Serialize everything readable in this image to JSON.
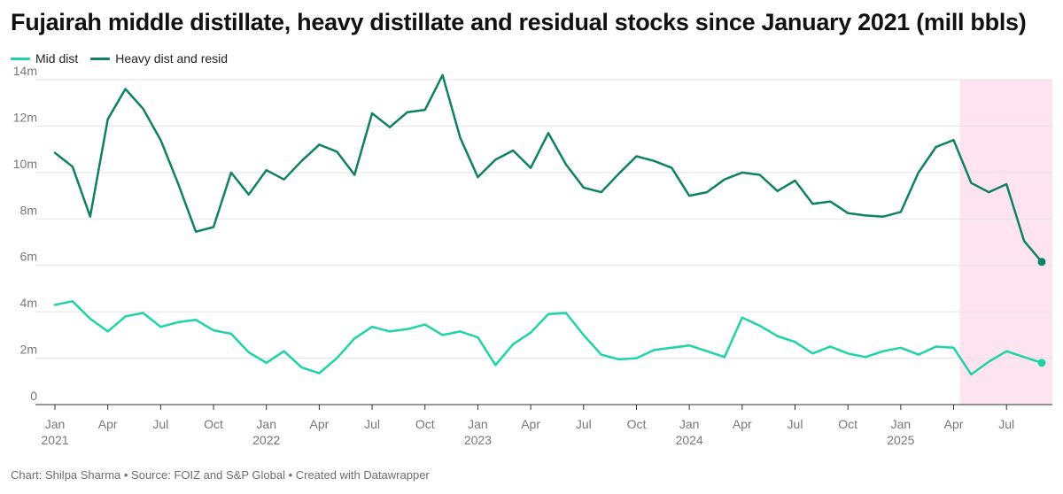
{
  "title": "Fujairah middle distillate, heavy distillate and residual stocks since January 2021 (mill bbls)",
  "footer": "Chart: Shilpa Sharma • Source: FOIZ and S&P Global • Created with Datawrapper",
  "colors": {
    "mid": "#1dd3a7",
    "heavy": "#0e8066",
    "highlight": "#fde4f0",
    "grid": "#e3e3e3"
  },
  "legend": [
    {
      "name": "Mid dist",
      "color": "#1dd3a7"
    },
    {
      "name": "Heavy dist and resid",
      "color": "#0e8066"
    }
  ],
  "chart_data": {
    "type": "line",
    "x_start": "2021-01",
    "x_end": "2025-09",
    "ylim": [
      0,
      14
    ],
    "grid": true,
    "legend_position": "top-left",
    "y_ticks": [
      {
        "value": 0,
        "label": "0"
      },
      {
        "value": 2,
        "label": "2m"
      },
      {
        "value": 4,
        "label": "4m"
      },
      {
        "value": 6,
        "label": "6m"
      },
      {
        "value": 8,
        "label": "8m"
      },
      {
        "value": 10,
        "label": "10m"
      },
      {
        "value": 12,
        "label": "12m"
      },
      {
        "value": 14,
        "label": "14m"
      }
    ],
    "x_ticks": [
      {
        "month": "2021-01",
        "label": "Jan",
        "year": "2021"
      },
      {
        "month": "2021-04",
        "label": "Apr",
        "year": ""
      },
      {
        "month": "2021-07",
        "label": "Jul",
        "year": ""
      },
      {
        "month": "2021-10",
        "label": "Oct",
        "year": ""
      },
      {
        "month": "2022-01",
        "label": "Jan",
        "year": "2022"
      },
      {
        "month": "2022-04",
        "label": "Apr",
        "year": ""
      },
      {
        "month": "2022-07",
        "label": "Jul",
        "year": ""
      },
      {
        "month": "2022-10",
        "label": "Oct",
        "year": ""
      },
      {
        "month": "2023-01",
        "label": "Jan",
        "year": "2023"
      },
      {
        "month": "2023-04",
        "label": "Apr",
        "year": ""
      },
      {
        "month": "2023-07",
        "label": "Jul",
        "year": ""
      },
      {
        "month": "2023-10",
        "label": "Oct",
        "year": ""
      },
      {
        "month": "2024-01",
        "label": "Jan",
        "year": "2024"
      },
      {
        "month": "2024-04",
        "label": "Apr",
        "year": ""
      },
      {
        "month": "2024-07",
        "label": "Jul",
        "year": ""
      },
      {
        "month": "2024-10",
        "label": "Oct",
        "year": ""
      },
      {
        "month": "2025-01",
        "label": "Jan",
        "year": "2025"
      },
      {
        "month": "2025-04",
        "label": "Apr",
        "year": ""
      },
      {
        "month": "2025-07",
        "label": "Jul",
        "year": ""
      }
    ],
    "highlight_range": [
      "2025-04",
      "2025-09"
    ],
    "series": [
      {
        "name": "Mid dist",
        "color": "#1dd3a7",
        "values": [
          4.3,
          4.45,
          3.7,
          3.15,
          3.8,
          3.95,
          3.35,
          3.55,
          3.65,
          3.2,
          3.05,
          2.25,
          1.8,
          2.3,
          1.6,
          1.35,
          2.0,
          2.85,
          3.35,
          3.15,
          3.25,
          3.45,
          3.0,
          3.15,
          2.9,
          1.7,
          2.6,
          3.1,
          3.9,
          3.95,
          3.0,
          2.15,
          1.95,
          2.0,
          2.35,
          2.45,
          2.55,
          2.3,
          2.05,
          3.75,
          3.4,
          2.95,
          2.7,
          2.2,
          2.5,
          2.2,
          2.05,
          2.3,
          2.45,
          2.15,
          2.5,
          2.45,
          1.3,
          1.85,
          2.3,
          2.05,
          1.8
        ]
      },
      {
        "name": "Heavy dist and resid",
        "color": "#0e8066",
        "values": [
          10.85,
          10.25,
          8.1,
          12.3,
          13.6,
          12.75,
          11.4,
          9.5,
          7.45,
          7.65,
          10.0,
          9.05,
          10.1,
          9.7,
          10.5,
          11.2,
          10.9,
          9.9,
          12.55,
          11.95,
          12.6,
          12.7,
          14.2,
          11.5,
          9.8,
          10.55,
          10.95,
          10.2,
          11.7,
          10.35,
          9.35,
          9.15,
          9.95,
          10.7,
          10.5,
          10.2,
          9.0,
          9.15,
          9.7,
          10.0,
          9.9,
          9.2,
          9.65,
          8.65,
          8.75,
          8.25,
          8.15,
          8.1,
          8.3,
          10.0,
          11.1,
          11.4,
          9.55,
          9.15,
          9.5,
          7.05,
          6.15
        ]
      }
    ]
  }
}
